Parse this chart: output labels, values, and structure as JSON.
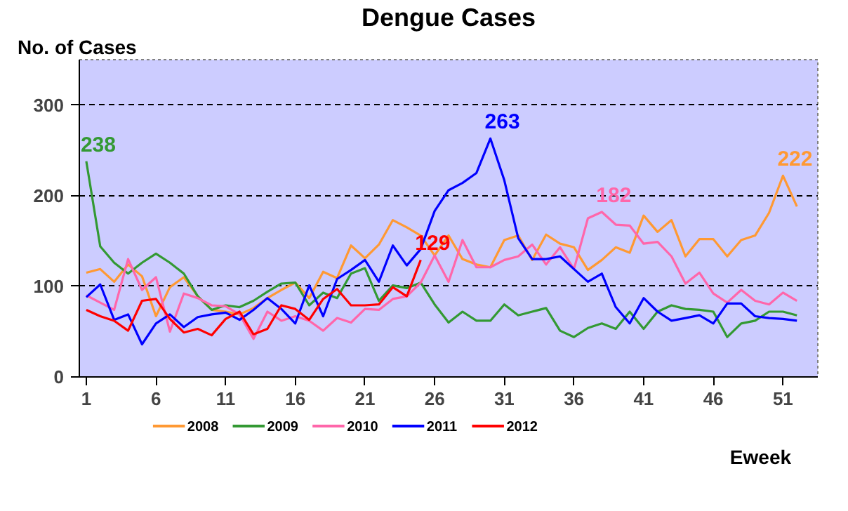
{
  "chart_data": {
    "type": "line",
    "title": "Dengue Cases",
    "ylabel": "No. of Cases",
    "xlabel": "Eweek",
    "x": [
      1,
      2,
      3,
      4,
      5,
      6,
      7,
      8,
      9,
      10,
      11,
      12,
      13,
      14,
      15,
      16,
      17,
      18,
      19,
      20,
      21,
      22,
      23,
      24,
      25,
      26,
      27,
      28,
      29,
      30,
      31,
      32,
      33,
      34,
      35,
      36,
      37,
      38,
      39,
      40,
      41,
      42,
      43,
      44,
      45,
      46,
      47,
      48,
      49,
      50,
      51,
      52
    ],
    "xlim": [
      0.5,
      53.5
    ],
    "xticks": [
      1,
      6,
      11,
      16,
      21,
      26,
      31,
      36,
      41,
      46,
      51
    ],
    "ylim": [
      0,
      350
    ],
    "yticks": [
      0,
      100,
      200,
      300
    ],
    "grid": "y",
    "legend": "bottom",
    "marker": "none",
    "line_style": "solid",
    "series": [
      {
        "name": "2008",
        "color": "#ff9933",
        "values": [
          115,
          119,
          105,
          124,
          111,
          67,
          99,
          110,
          89,
          74,
          72,
          69,
          76,
          87,
          96,
          104,
          87,
          116,
          109,
          145,
          131,
          146,
          173,
          165,
          156,
          134,
          156,
          130,
          124,
          121,
          151,
          156,
          129,
          157,
          147,
          143,
          118,
          129,
          143,
          137,
          178,
          160,
          173,
          133,
          152,
          152,
          133,
          151,
          156,
          181,
          222,
          188
        ]
      },
      {
        "name": "2009",
        "color": "#339933",
        "values": [
          238,
          144,
          126,
          114,
          126,
          136,
          126,
          114,
          89,
          74,
          79,
          77,
          84,
          94,
          103,
          104,
          79,
          93,
          87,
          114,
          120,
          84,
          101,
          98,
          104,
          80,
          60,
          72,
          62,
          62,
          80,
          68,
          72,
          76,
          51,
          44,
          54,
          59,
          53,
          72,
          53,
          72,
          79,
          75,
          74,
          72,
          44,
          59,
          62,
          72,
          72,
          68
        ]
      },
      {
        "name": "2010",
        "color": "#ff66aa",
        "values": [
          90,
          82,
          74,
          130,
          96,
          110,
          50,
          92,
          87,
          79,
          78,
          69,
          42,
          72,
          62,
          67,
          62,
          51,
          65,
          60,
          75,
          74,
          86,
          89,
          104,
          134,
          105,
          151,
          121,
          121,
          129,
          133,
          146,
          124,
          143,
          119,
          175,
          182,
          168,
          167,
          147,
          149,
          133,
          103,
          115,
          92,
          82,
          96,
          84,
          80,
          93,
          84
        ]
      },
      {
        "name": "2011",
        "color": "#0000ff",
        "values": [
          88,
          102,
          63,
          69,
          36,
          59,
          69,
          55,
          66,
          69,
          71,
          63,
          74,
          87,
          75,
          59,
          101,
          67,
          108,
          118,
          129,
          105,
          145,
          123,
          141,
          183,
          206,
          214,
          225,
          263,
          217,
          153,
          130,
          130,
          133,
          119,
          105,
          114,
          77,
          59,
          87,
          72,
          62,
          65,
          68,
          59,
          81,
          81,
          67,
          65,
          64,
          62
        ]
      },
      {
        "name": "2012",
        "color": "#ff0000",
        "values": [
          74,
          67,
          62,
          51,
          84,
          86,
          64,
          49,
          53,
          46,
          64,
          72,
          47,
          53,
          79,
          75,
          63,
          86,
          97,
          79,
          79,
          80,
          99,
          89,
          129,
          null,
          null,
          null,
          null,
          null,
          null,
          null,
          null,
          null,
          null,
          null,
          null,
          null,
          null,
          null,
          null,
          null,
          null,
          null,
          null,
          null,
          null,
          null,
          null,
          null,
          null,
          null
        ]
      }
    ],
    "annotations": [
      {
        "text": "238",
        "x": 1,
        "y": 238
      },
      {
        "text": "129",
        "x": 25,
        "y": 129
      },
      {
        "text": "263",
        "x": 30,
        "y": 263
      },
      {
        "text": "182",
        "x": 38,
        "y": 182
      },
      {
        "text": "222",
        "x": 51,
        "y": 222
      }
    ]
  }
}
